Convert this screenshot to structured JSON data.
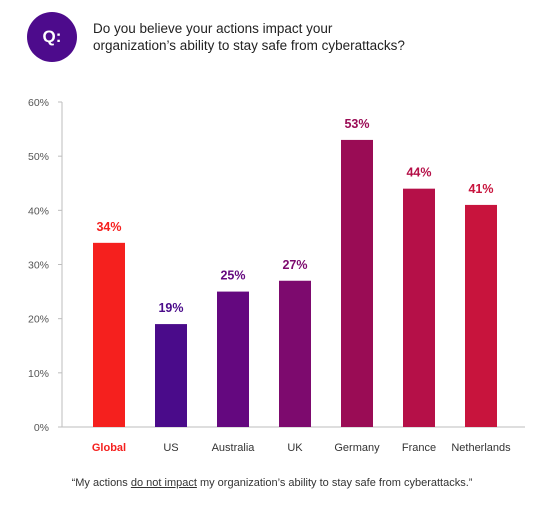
{
  "badge": {
    "label": "Q:",
    "color": "#4d0b8c"
  },
  "question": {
    "line1": "Do you believe your actions impact your",
    "line2": "organization’s ability to stay safe from cyberattacks?"
  },
  "caption": {
    "before": "“My actions ",
    "underlined": "do not impact",
    "after": " my organization’s ability to stay safe from cyberattacks.”"
  },
  "chart_data": {
    "type": "bar",
    "title": "",
    "xlabel": "",
    "ylabel": "",
    "ylim": [
      0,
      60
    ],
    "yticks": [
      0,
      10,
      20,
      30,
      40,
      50,
      60
    ],
    "ytick_labels": [
      "0%",
      "10%",
      "20%",
      "30%",
      "40%",
      "50%",
      "60%"
    ],
    "grid": false,
    "categories": [
      "Global",
      "US",
      "Australia",
      "UK",
      "Germany",
      "France",
      "Netherlands"
    ],
    "values": [
      34,
      19,
      25,
      27,
      53,
      44,
      41
    ],
    "value_labels": [
      "34%",
      "19%",
      "25%",
      "27%",
      "53%",
      "44%",
      "41%"
    ],
    "colors": [
      "#f5201e",
      "#4a0b8a",
      "#64087f",
      "#7d0a6e",
      "#9a0c55",
      "#b51048",
      "#c8143d"
    ],
    "highlight_category": "Global",
    "highlight_color": "#f5201e"
  }
}
